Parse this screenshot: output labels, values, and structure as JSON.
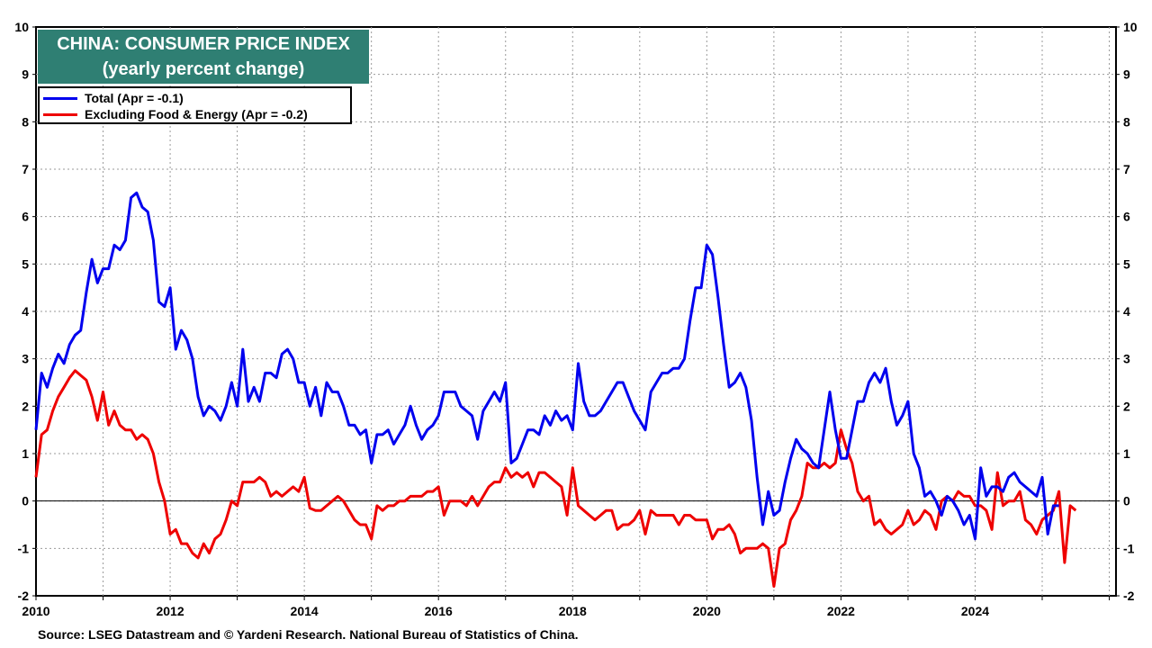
{
  "chart_data": {
    "type": "line",
    "title": "CHINA: CONSUMER PRICE INDEX",
    "subtitle": "(yearly percent change)",
    "source": "Source: LSEG Datastream and © Yardeni Research. National Bureau of Statistics of China.",
    "xlim": [
      2010,
      2026.1
    ],
    "ylim": [
      -2,
      10
    ],
    "y_ticks": [
      -2,
      -1,
      0,
      1,
      2,
      3,
      4,
      5,
      6,
      7,
      8,
      9,
      10
    ],
    "x_ticks": [
      2010,
      2012,
      2014,
      2016,
      2018,
      2020,
      2022,
      2024
    ],
    "grid": true,
    "legend_position": "top-left",
    "start": "2010-01",
    "frequency": "monthly",
    "series": [
      {
        "name": "Total (Apr = -0.1)",
        "color": "#0000ee",
        "values": [
          1.5,
          2.7,
          2.4,
          2.8,
          3.1,
          2.9,
          3.3,
          3.5,
          3.6,
          4.4,
          5.1,
          4.6,
          4.9,
          4.9,
          5.4,
          5.3,
          5.5,
          6.4,
          6.5,
          6.2,
          6.1,
          5.5,
          4.2,
          4.1,
          4.5,
          3.2,
          3.6,
          3.4,
          3.0,
          2.2,
          1.8,
          2.0,
          1.9,
          1.7,
          2.0,
          2.5,
          2.0,
          3.2,
          2.1,
          2.4,
          2.1,
          2.7,
          2.7,
          2.6,
          3.1,
          3.2,
          3.0,
          2.5,
          2.5,
          2.0,
          2.4,
          1.8,
          2.5,
          2.3,
          2.3,
          2.0,
          1.6,
          1.6,
          1.4,
          1.5,
          0.8,
          1.4,
          1.4,
          1.5,
          1.2,
          1.4,
          1.6,
          2.0,
          1.6,
          1.3,
          1.5,
          1.6,
          1.8,
          2.3,
          2.3,
          2.3,
          2.0,
          1.9,
          1.8,
          1.3,
          1.9,
          2.1,
          2.3,
          2.1,
          2.5,
          0.8,
          0.9,
          1.2,
          1.5,
          1.5,
          1.4,
          1.8,
          1.6,
          1.9,
          1.7,
          1.8,
          1.5,
          2.9,
          2.1,
          1.8,
          1.8,
          1.9,
          2.1,
          2.3,
          2.5,
          2.5,
          2.2,
          1.9,
          1.7,
          1.5,
          2.3,
          2.5,
          2.7,
          2.7,
          2.8,
          2.8,
          3.0,
          3.8,
          4.5,
          4.5,
          5.4,
          5.2,
          4.3,
          3.3,
          2.4,
          2.5,
          2.7,
          2.4,
          1.7,
          0.5,
          -0.5,
          0.2,
          -0.3,
          -0.2,
          0.4,
          0.9,
          1.3,
          1.1,
          1.0,
          0.8,
          0.7,
          1.5,
          2.3,
          1.5,
          0.9,
          0.9,
          1.5,
          2.1,
          2.1,
          2.5,
          2.7,
          2.5,
          2.8,
          2.1,
          1.6,
          1.8,
          2.1,
          1.0,
          0.7,
          0.1,
          0.2,
          0.0,
          -0.3,
          0.1,
          0.0,
          -0.2,
          -0.5,
          -0.3,
          -0.8,
          0.7,
          0.1,
          0.3,
          0.3,
          0.2,
          0.5,
          0.6,
          0.4,
          0.3,
          0.2,
          0.1,
          0.5,
          -0.7,
          -0.1,
          -0.1
        ]
      },
      {
        "name": "Excluding Food & Energy (Apr = -0.2)",
        "color": "#ee0000",
        "values": [
          0.5,
          1.4,
          1.5,
          1.9,
          2.2,
          2.4,
          2.6,
          2.75,
          2.65,
          2.55,
          2.2,
          1.7,
          2.3,
          1.6,
          1.9,
          1.6,
          1.5,
          1.5,
          1.3,
          1.4,
          1.3,
          1.0,
          0.4,
          0.0,
          -0.7,
          -0.6,
          -0.9,
          -0.9,
          -1.1,
          -1.2,
          -0.9,
          -1.1,
          -0.8,
          -0.7,
          -0.4,
          0.0,
          -0.1,
          0.4,
          0.4,
          0.4,
          0.5,
          0.4,
          0.1,
          0.2,
          0.1,
          0.2,
          0.3,
          0.2,
          0.5,
          -0.15,
          -0.2,
          -0.2,
          -0.1,
          0.0,
          0.1,
          0.0,
          -0.2,
          -0.4,
          -0.5,
          -0.5,
          -0.8,
          -0.1,
          -0.2,
          -0.1,
          -0.1,
          0.0,
          0.0,
          0.1,
          0.1,
          0.1,
          0.2,
          0.2,
          0.3,
          -0.3,
          0.0,
          0.0,
          0.0,
          -0.1,
          0.1,
          -0.1,
          0.1,
          0.3,
          0.4,
          0.4,
          0.7,
          0.5,
          0.6,
          0.5,
          0.6,
          0.3,
          0.6,
          0.6,
          0.5,
          0.4,
          0.3,
          -0.3,
          0.7,
          -0.1,
          -0.2,
          -0.3,
          -0.4,
          -0.3,
          -0.2,
          -0.2,
          -0.6,
          -0.5,
          -0.5,
          -0.4,
          -0.2,
          -0.7,
          -0.2,
          -0.3,
          -0.3,
          -0.3,
          -0.3,
          -0.5,
          -0.3,
          -0.3,
          -0.4,
          -0.4,
          -0.4,
          -0.8,
          -0.6,
          -0.6,
          -0.5,
          -0.7,
          -1.1,
          -1.0,
          -1.0,
          -1.0,
          -0.9,
          -1.0,
          -1.8,
          -1.0,
          -0.9,
          -0.4,
          -0.2,
          0.1,
          0.8,
          0.7,
          0.7,
          0.8,
          0.7,
          0.8,
          1.5,
          1.1,
          0.8,
          0.2,
          0.0,
          0.1,
          -0.5,
          -0.4,
          -0.6,
          -0.7,
          -0.6,
          -0.5,
          -0.2,
          -0.5,
          -0.4,
          -0.2,
          -0.3,
          -0.6,
          0.0,
          0.1,
          0.0,
          0.2,
          0.1,
          0.1,
          -0.1,
          -0.1,
          -0.2,
          -0.6,
          0.6,
          -0.1,
          0.0,
          0.0,
          0.2,
          -0.4,
          -0.5,
          -0.7,
          -0.4,
          -0.3,
          -0.2,
          0.2,
          -1.3,
          -0.1,
          -0.2
        ]
      }
    ]
  }
}
